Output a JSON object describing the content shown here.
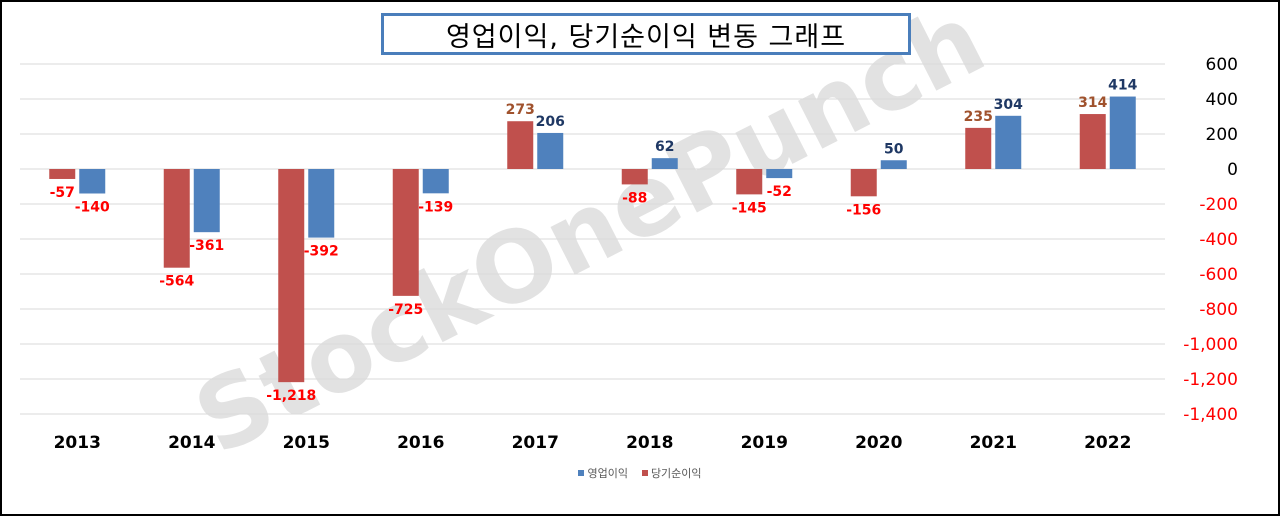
{
  "chart_data": {
    "type": "bar",
    "title": "영업이익, 당기순이익 변동 그래프",
    "categories": [
      "2013",
      "2014",
      "2015",
      "2016",
      "2017",
      "2018",
      "2019",
      "2020",
      "2021",
      "2022"
    ],
    "series": [
      {
        "name": "당기순이익",
        "color": "#c0504d",
        "values": [
          -57,
          -564,
          -1218,
          -725,
          273,
          -88,
          -145,
          -156,
          235,
          314
        ],
        "labels": [
          "-57",
          "-564",
          "-1,218",
          "-725",
          "273",
          "-88",
          "-145",
          "-156",
          "235",
          "314"
        ]
      },
      {
        "name": "영업이익",
        "color": "#4f81bd",
        "values": [
          -140,
          -361,
          -392,
          -139,
          206,
          62,
          -52,
          50,
          304,
          414
        ],
        "labels": [
          "-140",
          "-361",
          "-392",
          "-139",
          "206",
          "62",
          "-52",
          "50",
          "304",
          "414"
        ]
      }
    ],
    "legend_order": [
      "영업이익",
      "당기순이익"
    ],
    "ylim": [
      -1400,
      600
    ],
    "yticks": [
      600,
      400,
      200,
      0,
      -200,
      -400,
      -600,
      -800,
      -1000,
      -1200,
      -1400
    ],
    "ytick_labels": [
      "600",
      "400",
      "200",
      "0",
      "-200",
      "-400",
      "-600",
      "-800",
      "-1,000",
      "-1,200",
      "-1,400"
    ],
    "y_axis_position": "right",
    "grid": true,
    "legend_position": "bottom",
    "label_colors": {
      "negative": "#ff0000",
      "positive_net_income": "#a0522d",
      "positive_operating_income": "#1f3864"
    },
    "tick_colors": {
      "positive": "#000000",
      "negative": "#ff0000"
    },
    "watermark": "StockOnePunch"
  }
}
